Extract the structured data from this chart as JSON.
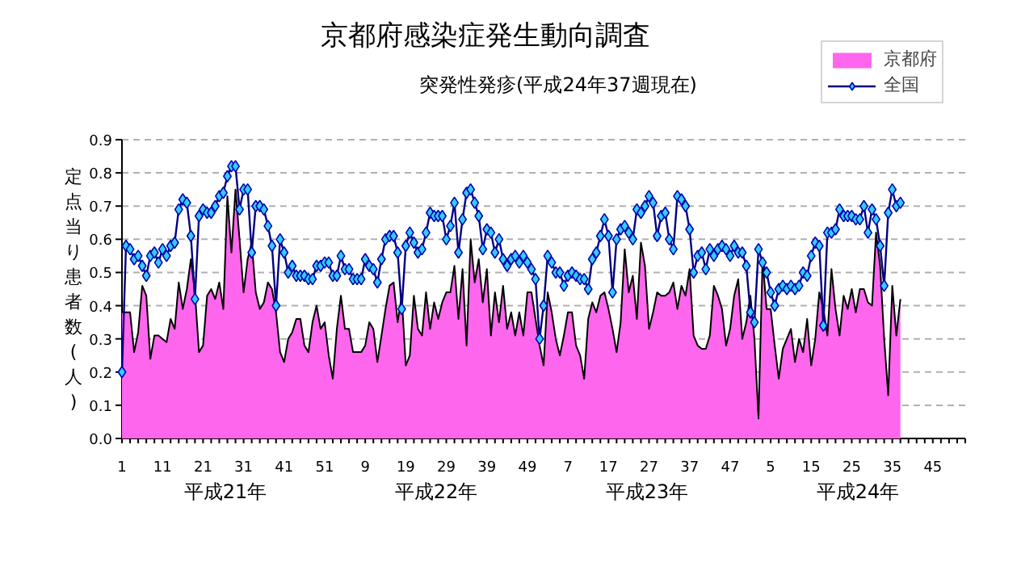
{
  "chart_data": {
    "type": "area",
    "title": "京都府感染症発生動向調査",
    "subtitle": "突発性発疹(平成24年37週現在)",
    "ylabel": "定点当り患者数(人)",
    "categories": [
      "1",
      null,
      null,
      null,
      null,
      null,
      null,
      null,
      null,
      null,
      "11",
      null,
      null,
      null,
      null,
      null,
      null,
      null,
      null,
      null,
      "21",
      null,
      null,
      null,
      null,
      null,
      null,
      null,
      null,
      null,
      "31",
      null,
      null,
      null,
      null,
      null,
      null,
      null,
      null,
      null,
      "41",
      null,
      null,
      null,
      null,
      null,
      null,
      null,
      null,
      null,
      "51",
      null,
      null,
      null,
      null,
      null,
      null,
      null,
      null,
      null,
      "9",
      null,
      null,
      null,
      null,
      null,
      null,
      null,
      null,
      null,
      "19",
      null,
      null,
      null,
      null,
      null,
      null,
      null,
      null,
      null,
      "29",
      null,
      null,
      null,
      null,
      null,
      null,
      null,
      null,
      null,
      "39",
      null,
      null,
      null,
      null,
      null,
      null,
      null,
      null,
      null,
      "49",
      null,
      null,
      null,
      null,
      null,
      null,
      null,
      null,
      null,
      "7",
      null,
      null,
      null,
      null,
      null,
      null,
      null,
      null,
      null,
      "17",
      null,
      null,
      null,
      null,
      null,
      null,
      null,
      null,
      null,
      "27",
      null,
      null,
      null,
      null,
      null,
      null,
      null,
      null,
      null,
      "37",
      null,
      null,
      null,
      null,
      null,
      null,
      null,
      null,
      null,
      "47",
      null,
      null,
      null,
      null,
      null,
      null,
      null,
      null,
      null,
      "5",
      null,
      null,
      null,
      null,
      null,
      null,
      null,
      null,
      null,
      "15",
      null,
      null,
      null,
      null,
      null,
      null,
      null,
      null,
      null,
      "25",
      null,
      null,
      null,
      null,
      null,
      null,
      null,
      null,
      null,
      "35",
      null,
      null,
      null,
      null,
      null,
      null,
      null,
      null,
      null,
      "45",
      null,
      null,
      null,
      null,
      null,
      null,
      null
    ],
    "annotations": [
      "平成21年",
      "平成22年",
      "平成23年",
      "平成24年"
    ],
    "ylim": [
      0,
      0.9
    ],
    "yticks": [
      {
        "value": 0,
        "label": "0.0"
      },
      {
        "value": 0.1,
        "label": "0.1"
      },
      {
        "value": 0.2,
        "label": "0.2"
      },
      {
        "value": 0.3,
        "label": "0.3"
      },
      {
        "value": 0.4,
        "label": "0.4"
      },
      {
        "value": 0.5,
        "label": "0.5"
      },
      {
        "value": 0.6,
        "label": "0.6"
      },
      {
        "value": 0.7,
        "label": "0.7"
      },
      {
        "value": 0.8,
        "label": "0.8"
      },
      {
        "value": 0.9,
        "label": "0.9"
      }
    ],
    "grid": "y",
    "legend": "top right",
    "series": [
      {
        "name": "京都府",
        "color": "#ff66ee",
        "values": [
          0.38,
          0.38,
          0.38,
          0.26,
          0.32,
          0.46,
          0.43,
          0.24,
          0.31,
          0.31,
          0.3,
          0.29,
          0.36,
          0.33,
          0.47,
          0.39,
          0.45,
          0.54,
          0.44,
          0.26,
          0.28,
          0.43,
          0.45,
          0.42,
          0.47,
          0.39,
          0.73,
          0.56,
          0.75,
          0.6,
          0.44,
          0.54,
          0.59,
          0.44,
          0.39,
          0.41,
          0.47,
          0.45,
          0.38,
          0.26,
          0.23,
          0.3,
          0.32,
          0.36,
          0.36,
          0.28,
          0.26,
          0.35,
          0.4,
          0.33,
          0.35,
          0.25,
          0.18,
          0.33,
          0.43,
          0.33,
          0.33,
          0.26,
          0.26,
          0.26,
          0.28,
          0.35,
          0.33,
          0.23,
          0.31,
          0.39,
          0.46,
          0.47,
          0.35,
          0.43,
          0.22,
          0.25,
          0.43,
          0.33,
          0.31,
          0.44,
          0.33,
          0.41,
          0.36,
          0.41,
          0.44,
          0.44,
          0.52,
          0.36,
          0.51,
          0.28,
          0.6,
          0.47,
          0.54,
          0.41,
          0.51,
          0.31,
          0.44,
          0.35,
          0.46,
          0.33,
          0.38,
          0.31,
          0.38,
          0.31,
          0.44,
          0.44,
          0.36,
          0.28,
          0.22,
          0.44,
          0.38,
          0.3,
          0.25,
          0.31,
          0.38,
          0.38,
          0.28,
          0.25,
          0.18,
          0.36,
          0.41,
          0.38,
          0.43,
          0.44,
          0.39,
          0.33,
          0.26,
          0.35,
          0.57,
          0.44,
          0.49,
          0.36,
          0.59,
          0.52,
          0.33,
          0.38,
          0.44,
          0.43,
          0.43,
          0.44,
          0.47,
          0.39,
          0.46,
          0.43,
          0.51,
          0.31,
          0.28,
          0.27,
          0.27,
          0.31,
          0.46,
          0.43,
          0.39,
          0.28,
          0.33,
          0.43,
          0.48,
          0.3,
          0.35,
          0.43,
          0.3,
          0.06,
          0.54,
          0.39,
          0.39,
          0.28,
          0.18,
          0.27,
          0.3,
          0.33,
          0.23,
          0.3,
          0.26,
          0.36,
          0.22,
          0.3,
          0.44,
          0.39,
          0.31,
          0.51,
          0.39,
          0.31,
          0.43,
          0.39,
          0.45,
          0.38,
          0.45,
          0.45,
          0.41,
          0.4,
          0.62,
          0.52,
          0.3,
          0.13,
          0.46,
          0.31,
          0.42,
          null,
          null,
          null,
          null,
          null,
          null,
          null,
          null,
          null,
          null,
          null,
          null,
          null,
          null,
          null
        ]
      },
      {
        "name": "全国",
        "type": "line",
        "color": "#000080",
        "marker": "diamond",
        "values": [
          0.2,
          0.58,
          0.57,
          0.54,
          0.55,
          0.52,
          0.49,
          0.55,
          0.56,
          0.53,
          0.57,
          0.55,
          0.58,
          0.59,
          0.69,
          0.72,
          0.71,
          0.61,
          0.42,
          0.67,
          0.69,
          0.68,
          0.68,
          0.7,
          0.73,
          0.74,
          0.79,
          0.82,
          0.82,
          0.69,
          0.75,
          0.75,
          0.56,
          0.7,
          0.7,
          0.69,
          0.64,
          0.58,
          0.4,
          0.6,
          0.56,
          0.5,
          0.52,
          0.49,
          0.49,
          0.49,
          0.48,
          0.48,
          0.52,
          0.52,
          0.53,
          0.53,
          0.49,
          0.49,
          0.55,
          0.51,
          0.51,
          0.48,
          0.48,
          0.48,
          0.54,
          0.52,
          0.51,
          0.47,
          0.54,
          0.6,
          0.61,
          0.61,
          0.56,
          0.39,
          0.58,
          0.62,
          0.59,
          0.56,
          0.57,
          0.62,
          0.68,
          0.67,
          0.67,
          0.67,
          0.6,
          0.64,
          0.71,
          0.56,
          0.66,
          0.74,
          0.75,
          0.71,
          0.67,
          0.57,
          0.63,
          0.62,
          0.56,
          0.6,
          0.54,
          0.52,
          0.54,
          0.55,
          0.53,
          0.55,
          0.53,
          0.51,
          0.48,
          0.3,
          0.4,
          0.55,
          0.53,
          0.5,
          0.5,
          0.46,
          0.49,
          0.5,
          0.49,
          0.48,
          0.48,
          0.45,
          0.54,
          0.56,
          0.61,
          0.66,
          0.61,
          0.44,
          0.6,
          0.63,
          0.64,
          0.62,
          0.6,
          0.69,
          0.68,
          0.7,
          0.73,
          0.71,
          0.61,
          0.67,
          0.68,
          0.6,
          0.57,
          0.73,
          0.72,
          0.7,
          0.63,
          0.5,
          0.55,
          0.56,
          0.51,
          0.57,
          0.55,
          0.57,
          0.58,
          0.57,
          0.55,
          0.58,
          0.56,
          0.56,
          0.52,
          0.38,
          0.35,
          0.57,
          0.53,
          0.5,
          0.44,
          0.4,
          0.45,
          0.46,
          0.45,
          0.46,
          0.45,
          0.46,
          0.5,
          0.49,
          0.55,
          0.59,
          0.58,
          0.34,
          0.62,
          0.62,
          0.63,
          0.69,
          0.67,
          0.67,
          0.67,
          0.66,
          0.66,
          0.7,
          0.62,
          0.69,
          0.66,
          0.58,
          0.46,
          0.68,
          0.75,
          0.7,
          0.71,
          null,
          null,
          null,
          null,
          null,
          null,
          null,
          null,
          null,
          null,
          null,
          null,
          null,
          null,
          null
        ]
      }
    ]
  }
}
